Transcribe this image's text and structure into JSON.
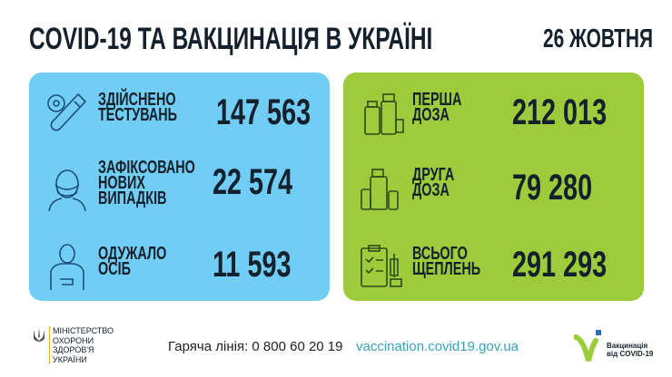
{
  "header": {
    "title": "COVID-19 ТА ВАКЦИНАЦІЯ В УКРАЇНІ",
    "date": "26 ЖОВТНЯ"
  },
  "colors": {
    "blue_panel": "#72cdf4",
    "green_panel": "#9ccb3b",
    "text": "#14202c",
    "link": "#3a9fb7"
  },
  "covid_stats": [
    {
      "icon": "test-tube-icon",
      "label_lines": [
        "ЗДІЙСНЕНО",
        "ТЕСТУВАНЬ"
      ],
      "value": "147 563"
    },
    {
      "icon": "masked-person-icon",
      "label_lines": [
        "ЗАФІКСОВАНО",
        "НОВИХ",
        "ВИПАДКІВ"
      ],
      "value": "22 574"
    },
    {
      "icon": "recovered-person-icon",
      "label_lines": [
        "ОДУЖАЛО",
        "ОСІБ"
      ],
      "value": "11 593"
    }
  ],
  "vaccination_stats": [
    {
      "icon": "vaccine-vials-icon",
      "label_lines": [
        "ПЕРША",
        "ДОЗА"
      ],
      "value": "212 013"
    },
    {
      "icon": "vaccine-vials-icon",
      "label_lines": [
        "ДРУГА",
        "ДОЗА"
      ],
      "value": "79 280"
    },
    {
      "icon": "clipboard-syringe-icon",
      "label_lines": [
        "ВСЬОГО",
        "ЩЕПЛЕНЬ"
      ],
      "value": "291 293"
    }
  ],
  "footer": {
    "ministry_lines": [
      "МІНІСТЕРСТВО",
      "ОХОРОНИ",
      "ЗДОРОВ'Я",
      "УКРАЇНИ"
    ],
    "hotline": "Гаряча лінія: 0 800 60 20 19",
    "website": "vaccination.covid19.gov.ua",
    "vaccination_logo_lines": [
      "Вакцинація",
      "від COVID-19"
    ]
  }
}
